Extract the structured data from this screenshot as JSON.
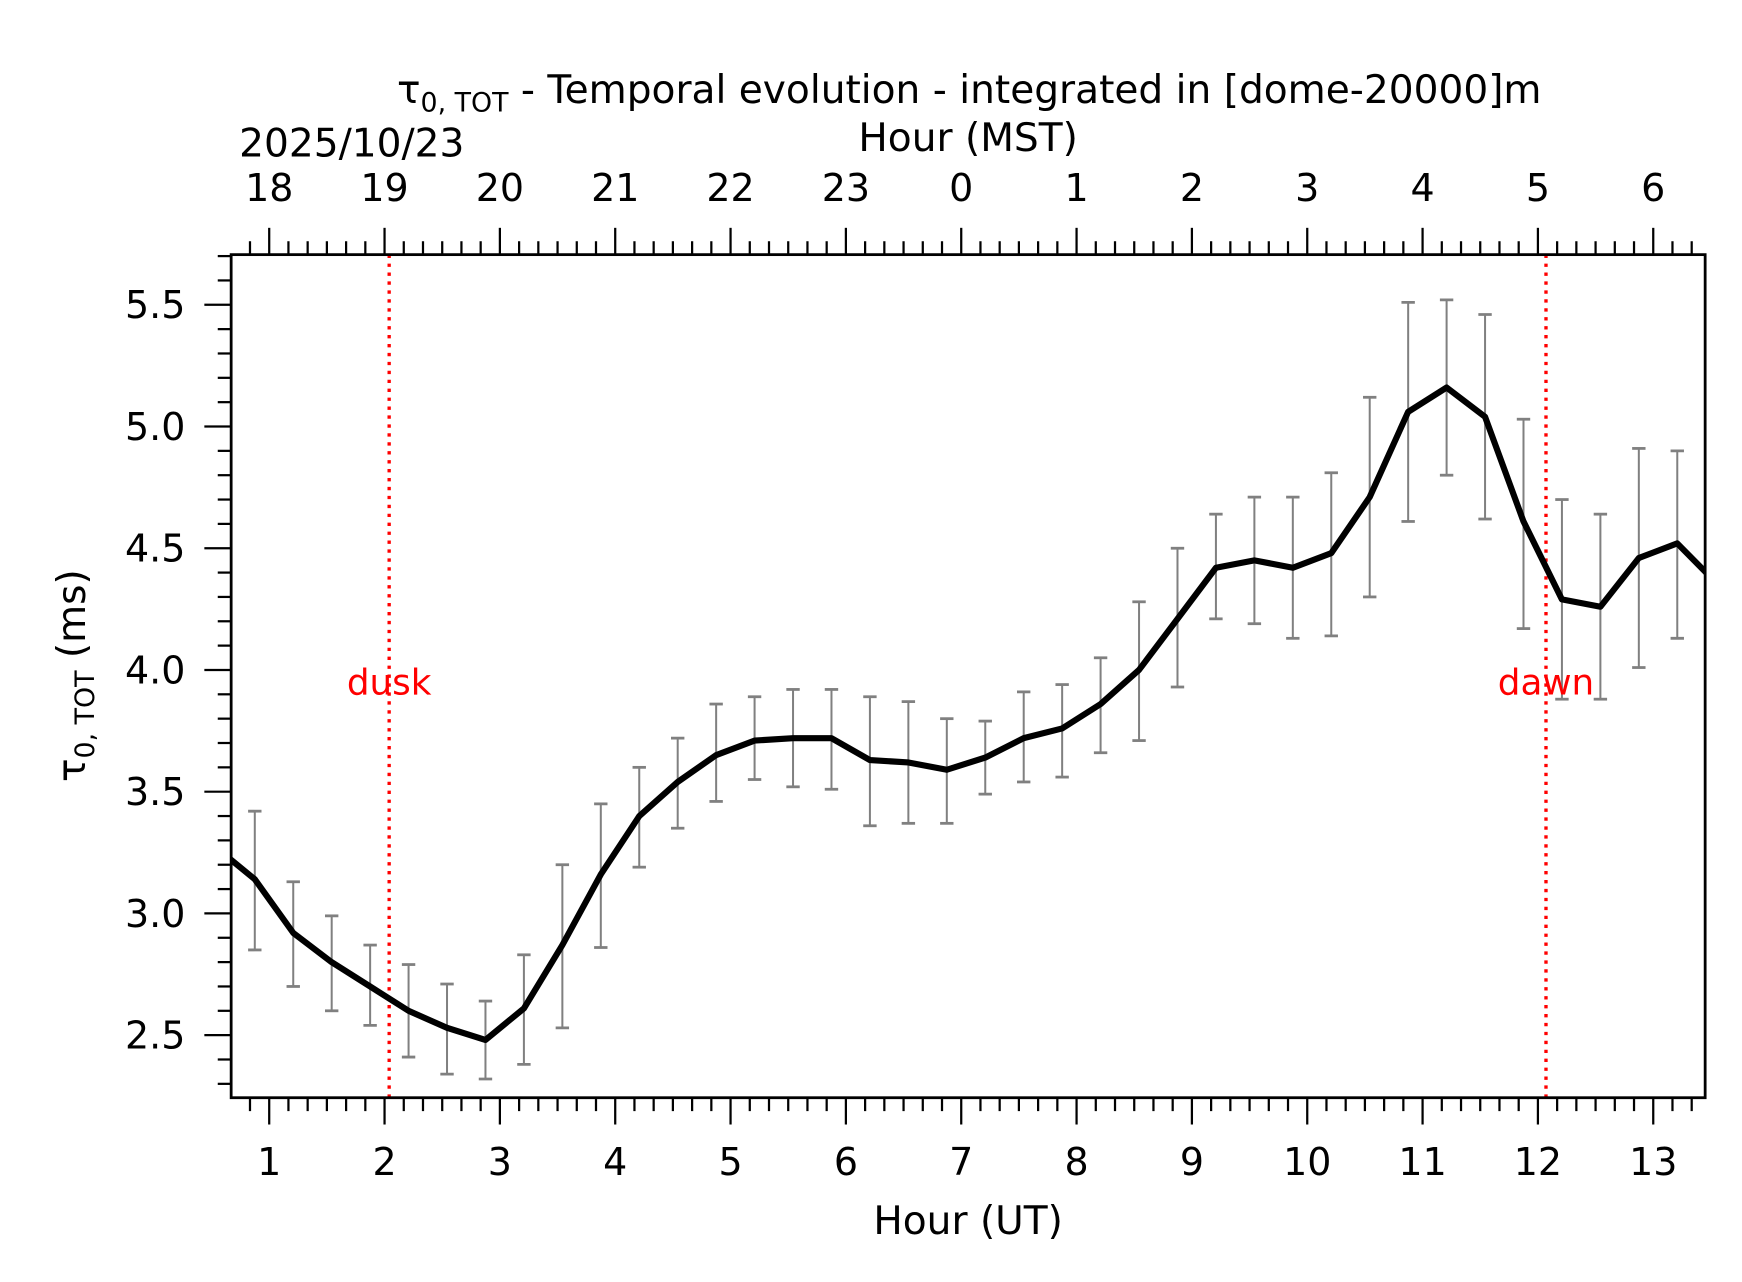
{
  "chart_data": {
    "type": "line",
    "title_main": "τ",
    "title_sub": "0, TOT",
    "title_rest": " - Temporal evolution - integrated in [dome-20000]m",
    "date_label": "2025/10/23",
    "xlabel": "Hour (UT)",
    "x2label": "Hour (MST)",
    "ylabel_main": "τ",
    "ylabel_sub": "0, TOT",
    "ylabel_rest": " (ms)",
    "xlim": [
      0.67,
      13.45
    ],
    "ylim": [
      2.243,
      5.706
    ],
    "x_ticks": [
      1,
      2,
      3,
      4,
      5,
      6,
      7,
      8,
      9,
      10,
      11,
      12,
      13
    ],
    "x_tick_labels": [
      "1",
      "2",
      "3",
      "4",
      "5",
      "6",
      "7",
      "8",
      "9",
      "10",
      "11",
      "12",
      "13"
    ],
    "x2_ticks": [
      1,
      2,
      3,
      4,
      5,
      6,
      7,
      8,
      9,
      10,
      11,
      12,
      13
    ],
    "x2_tick_labels": [
      "18",
      "19",
      "20",
      "21",
      "22",
      "23",
      "0",
      "1",
      "2",
      "3",
      "4",
      "5",
      "6"
    ],
    "y_ticks": [
      2.5,
      3.0,
      3.5,
      4.0,
      4.5,
      5.0,
      5.5
    ],
    "y_tick_labels": [
      "2.5",
      "3.0",
      "3.5",
      "4.0",
      "4.5",
      "5.0",
      "5.5"
    ],
    "line_color": "#000000",
    "errorbar_color": "#808080",
    "marker_color": "#ff0000",
    "series": [
      {
        "name": "tau0_tot",
        "x": [
          0.5417,
          0.875,
          1.2083,
          1.5417,
          1.875,
          2.2083,
          2.5417,
          2.875,
          3.2083,
          3.5417,
          3.875,
          4.2083,
          4.5417,
          4.875,
          5.2083,
          5.5417,
          5.875,
          6.2083,
          6.5417,
          6.875,
          7.2083,
          7.5417,
          7.875,
          8.2083,
          8.5417,
          8.875,
          9.2083,
          9.5417,
          9.875,
          10.2083,
          10.5417,
          10.875,
          11.2083,
          11.5417,
          11.875,
          12.2083,
          12.5417,
          12.875,
          13.2083,
          13.5417
        ],
        "y": [
          3.27,
          3.14,
          2.92,
          2.8,
          2.7,
          2.6,
          2.53,
          2.48,
          2.61,
          2.87,
          3.16,
          3.4,
          3.54,
          3.65,
          3.71,
          3.72,
          3.72,
          3.63,
          3.62,
          3.59,
          3.64,
          3.72,
          3.76,
          3.86,
          4.0,
          4.21,
          4.42,
          4.45,
          4.42,
          4.48,
          4.71,
          5.06,
          5.16,
          5.04,
          4.61,
          4.29,
          4.26,
          4.46,
          4.52,
          4.36
        ],
        "err_high": [
          null,
          3.42,
          3.13,
          2.99,
          2.87,
          2.79,
          2.71,
          2.64,
          2.83,
          3.2,
          3.45,
          3.6,
          3.72,
          3.86,
          3.89,
          3.92,
          3.92,
          3.89,
          3.87,
          3.8,
          3.79,
          3.91,
          3.94,
          4.05,
          4.28,
          4.5,
          4.64,
          4.71,
          4.71,
          4.81,
          5.12,
          5.51,
          5.52,
          5.46,
          5.03,
          4.7,
          4.64,
          4.91,
          4.9,
          null
        ],
        "err_low": [
          null,
          2.85,
          2.7,
          2.6,
          2.54,
          2.41,
          2.34,
          2.32,
          2.38,
          2.53,
          2.86,
          3.19,
          3.35,
          3.46,
          3.55,
          3.52,
          3.51,
          3.36,
          3.37,
          3.37,
          3.49,
          3.54,
          3.56,
          3.66,
          3.71,
          3.93,
          4.21,
          4.19,
          4.13,
          4.14,
          4.3,
          4.61,
          4.8,
          4.62,
          4.17,
          3.88,
          3.88,
          4.01,
          4.13,
          null
        ]
      }
    ],
    "annotations": [
      {
        "label": "dusk",
        "x": 2.04,
        "y": 3.95
      },
      {
        "label": "dawn",
        "x": 12.07,
        "y": 3.95
      }
    ],
    "grid": false
  }
}
